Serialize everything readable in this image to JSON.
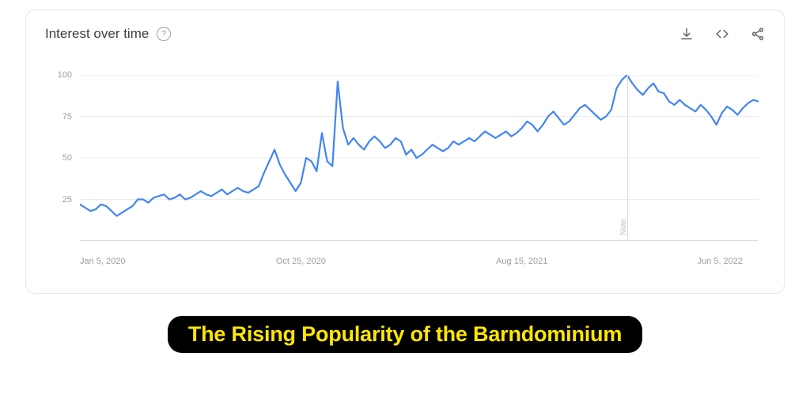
{
  "card": {
    "title": "Interest over time",
    "help_icon": "?",
    "icons": {
      "download": "download-icon",
      "embed": "embed-icon",
      "share": "share-icon"
    }
  },
  "chart": {
    "type": "line",
    "line_color": "#4285f4",
    "line_width": 2.2,
    "background_color": "#ffffff",
    "grid_color": "#ebebeb",
    "axis_text_color": "#9aa0a6",
    "ylim": [
      0,
      100
    ],
    "yticks": [
      25,
      50,
      75,
      100
    ],
    "xlim": [
      0,
      129
    ],
    "x_tick_positions": [
      0,
      42,
      84,
      126
    ],
    "x_tick_labels": [
      "Jan 5, 2020",
      "Oct 25, 2020",
      "Aug 15, 2021",
      "Jun 5, 2022"
    ],
    "note": {
      "x": 104,
      "label": "Note",
      "line_color": "#dadce0"
    },
    "values": [
      22,
      20,
      18,
      19,
      22,
      21,
      18,
      15,
      17,
      19,
      21,
      25,
      25,
      23,
      26,
      27,
      28,
      25,
      26,
      28,
      25,
      26,
      28,
      30,
      28,
      27,
      29,
      31,
      28,
      30,
      32,
      30,
      29,
      31,
      33,
      41,
      48,
      55,
      46,
      40,
      35,
      30,
      35,
      50,
      48,
      42,
      65,
      48,
      45,
      96,
      68,
      58,
      62,
      58,
      55,
      60,
      63,
      60,
      56,
      58,
      62,
      60,
      52,
      55,
      50,
      52,
      55,
      58,
      56,
      54,
      56,
      60,
      58,
      60,
      62,
      60,
      63,
      66,
      64,
      62,
      64,
      66,
      63,
      65,
      68,
      72,
      70,
      66,
      70,
      75,
      78,
      74,
      70,
      72,
      76,
      80,
      82,
      79,
      76,
      73,
      75,
      79,
      92,
      97,
      100,
      95,
      91,
      88,
      92,
      95,
      90,
      89,
      84,
      82,
      85,
      82,
      80,
      78,
      82,
      79,
      75,
      70,
      77,
      81,
      79,
      76,
      80,
      83,
      85,
      84
    ]
  },
  "caption": {
    "text": "The Rising Popularity of the Barndominium",
    "text_color": "#ffe600",
    "background_color": "#000000"
  }
}
